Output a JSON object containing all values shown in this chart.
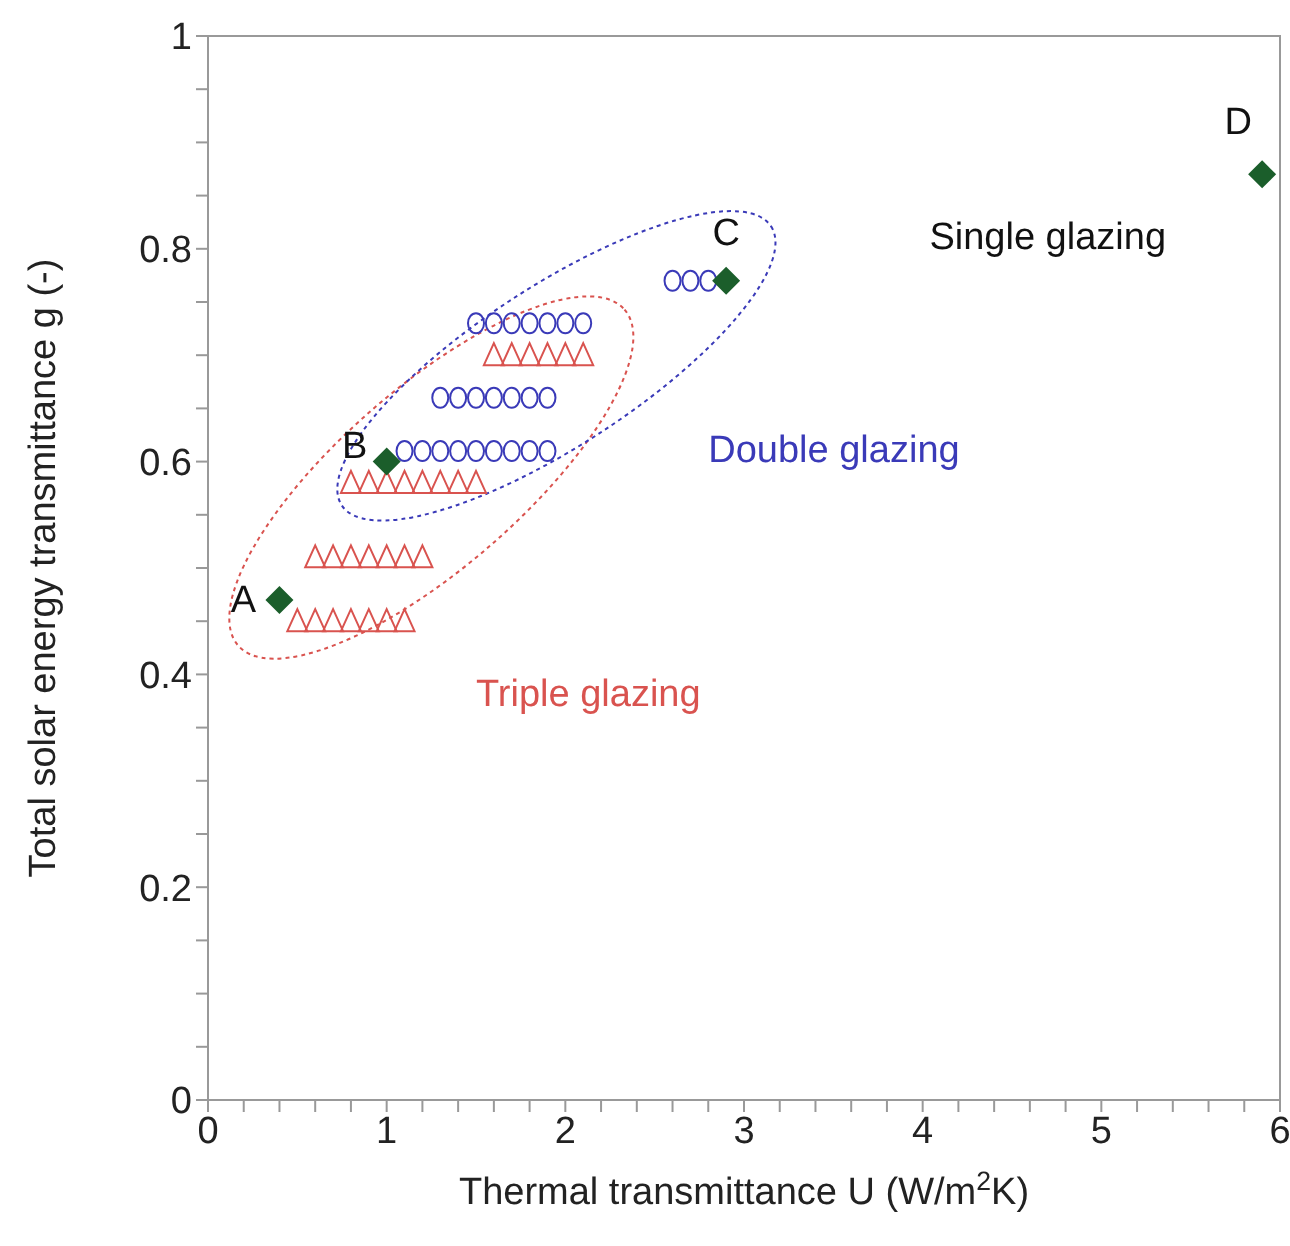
{
  "chart_data": {
    "type": "scatter",
    "xlabel": "Thermal transmittance U (W/m$^{2}$K)",
    "ylabel": "Total solar energy transmittance g (-)",
    "xlim": [
      0,
      6
    ],
    "ylim": [
      0,
      1
    ],
    "xticks": [
      0,
      {
        "value": 0.2,
        "label": null
      },
      {
        "value": 0.4,
        "label": null
      },
      {
        "value": 0.6,
        "label": null
      },
      {
        "value": 0.8,
        "label": null
      },
      1,
      {
        "value": 1.2,
        "label": null
      },
      {
        "value": 1.4,
        "label": null
      },
      {
        "value": 1.6,
        "label": null
      },
      {
        "value": 1.8,
        "label": null
      },
      2,
      {
        "value": 2.2,
        "label": null
      },
      {
        "value": 2.4,
        "label": null
      },
      {
        "value": 2.6,
        "label": null
      },
      {
        "value": 2.8,
        "label": null
      },
      3,
      {
        "value": 3.2,
        "label": null
      },
      {
        "value": 3.4,
        "label": null
      },
      {
        "value": 3.6,
        "label": null
      },
      {
        "value": 3.8,
        "label": null
      },
      4,
      {
        "value": 4.2,
        "label": null
      },
      {
        "value": 4.4,
        "label": null
      },
      {
        "value": 4.6,
        "label": null
      },
      {
        "value": 4.8,
        "label": null
      },
      5,
      {
        "value": 5.2,
        "label": null
      },
      {
        "value": 5.4,
        "label": null
      },
      {
        "value": 5.6,
        "label": null
      },
      {
        "value": 5.8,
        "label": null
      },
      6
    ],
    "yticks": [
      0,
      {
        "value": 0.05,
        "label": null
      },
      {
        "value": 0.1,
        "label": null
      },
      {
        "value": 0.15,
        "label": null
      },
      0.2,
      {
        "value": 0.25,
        "label": null
      },
      {
        "value": 0.3,
        "label": null
      },
      {
        "value": 0.35,
        "label": null
      },
      0.4,
      {
        "value": 0.45,
        "label": null
      },
      {
        "value": 0.5,
        "label": null
      },
      {
        "value": 0.55,
        "label": null
      },
      0.6,
      {
        "value": 0.65,
        "label": null
      },
      {
        "value": 0.7,
        "label": null
      },
      {
        "value": 0.75,
        "label": null
      },
      0.8,
      {
        "value": 0.85,
        "label": null
      },
      {
        "value": 0.9,
        "label": null
      },
      {
        "value": 0.95,
        "label": null
      },
      1
    ],
    "series": [
      {
        "name": "Triple glazing",
        "color": "#d9534f",
        "marker": "triangle",
        "x": [
          0.5,
          0.6,
          0.7,
          0.8,
          0.9,
          1.0,
          1.1,
          0.6,
          0.7,
          0.8,
          0.9,
          1.0,
          1.1,
          1.2,
          0.8,
          0.9,
          1.0,
          1.1,
          1.2,
          1.3,
          1.4,
          1.5,
          1.6,
          1.7,
          1.8,
          1.9,
          2.0,
          2.1
        ],
        "values": [
          0.45,
          0.45,
          0.45,
          0.45,
          0.45,
          0.45,
          0.45,
          0.51,
          0.51,
          0.51,
          0.51,
          0.51,
          0.51,
          0.51,
          0.58,
          0.58,
          0.58,
          0.58,
          0.58,
          0.58,
          0.58,
          0.58,
          0.7,
          0.7,
          0.7,
          0.7,
          0.7,
          0.7
        ]
      },
      {
        "name": "Double glazing",
        "color": "#3a3ab8",
        "marker": "circle",
        "x": [
          1.1,
          1.2,
          1.3,
          1.4,
          1.5,
          1.6,
          1.7,
          1.8,
          1.9,
          1.3,
          1.4,
          1.5,
          1.6,
          1.7,
          1.8,
          1.9,
          1.5,
          1.6,
          1.7,
          1.8,
          1.9,
          2.0,
          2.1,
          2.6,
          2.7,
          2.8
        ],
        "values": [
          0.61,
          0.61,
          0.61,
          0.61,
          0.61,
          0.61,
          0.61,
          0.61,
          0.61,
          0.66,
          0.66,
          0.66,
          0.66,
          0.66,
          0.66,
          0.66,
          0.73,
          0.73,
          0.73,
          0.73,
          0.73,
          0.73,
          0.73,
          0.77,
          0.77,
          0.77
        ]
      },
      {
        "color": "#1b5e2b",
        "marker": "diamond",
        "x": [
          0.4,
          1.0,
          2.9
        ],
        "values": [
          0.47,
          0.6,
          0.77
        ]
      },
      {
        "name": "Single glazing",
        "color": "#1b5e2b",
        "marker": "diamond",
        "x": [
          5.9
        ],
        "values": [
          0.87
        ]
      }
    ],
    "annotations": [
      {
        "text": "A",
        "x": 0.4,
        "y": 0.47
      },
      {
        "text": "B",
        "x": 1.0,
        "y": 0.6
      },
      {
        "text": "C",
        "x": 2.9,
        "y": 0.77
      },
      {
        "text": "D",
        "x": 5.9,
        "y": 0.87
      }
    ]
  }
}
